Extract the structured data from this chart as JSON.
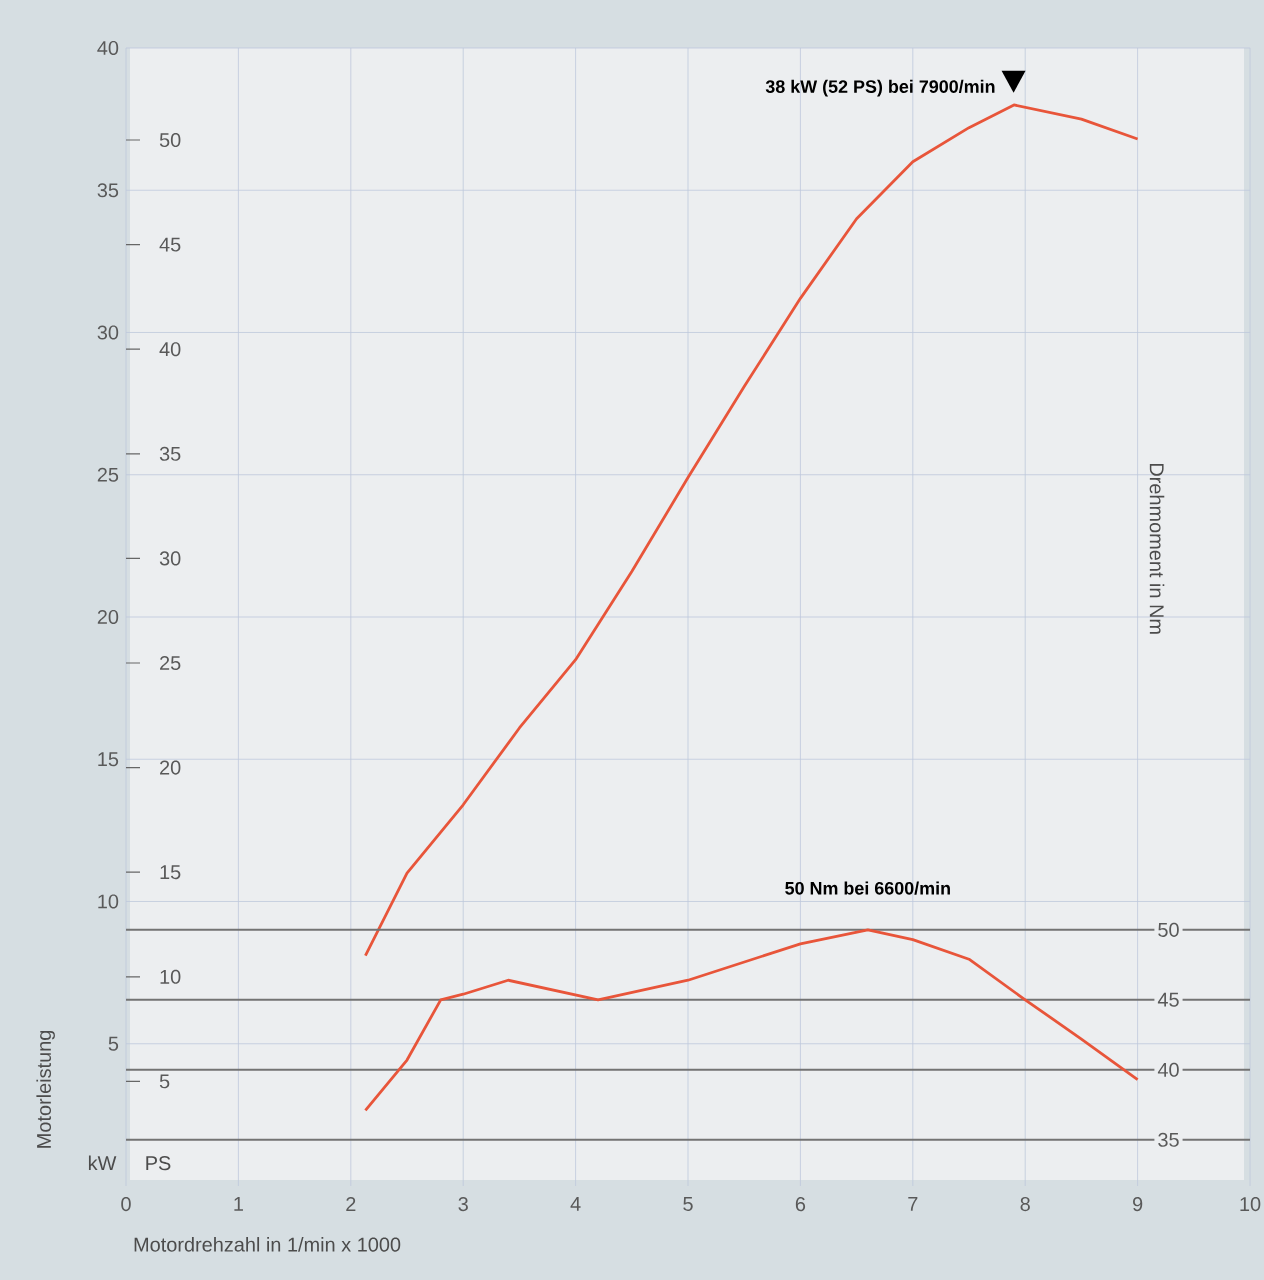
{
  "chart_data": {
    "type": "line",
    "xlabel": "Motordrehzahl in 1/min x 1000",
    "ylabel": "Motorleistung",
    "y3label": "Drehmoment in Nm",
    "xlim": [
      0,
      10
    ],
    "xticks": [
      0,
      1,
      2,
      3,
      4,
      5,
      6,
      7,
      8,
      9,
      10
    ],
    "ylim": [
      0,
      40
    ],
    "yticks": [
      5,
      10,
      15,
      20,
      25,
      30,
      35,
      40
    ],
    "y2lim": [
      0,
      54.4
    ],
    "y2ticks": [
      5,
      10,
      15,
      20,
      25,
      30,
      35,
      40,
      45,
      50
    ],
    "y3lim": [
      31.7,
      113
    ],
    "y3ticks": [
      35,
      40,
      45,
      50
    ],
    "grid": true,
    "marker": "none",
    "line_style": "solid",
    "series": [
      {
        "color": "#e8553a",
        "x": [
          2.13,
          2.5,
          3,
          3.5,
          4,
          4.5,
          5,
          5.5,
          6,
          6.5,
          7,
          7.5,
          7.9,
          8.5,
          9
        ],
        "values": [
          8.1,
          11,
          13.4,
          16.1,
          18.5,
          21.6,
          24.9,
          28.1,
          31.2,
          34,
          36,
          37.2,
          38,
          37.5,
          36.8
        ]
      },
      {
        "color": "#e8553a",
        "axis": "y3",
        "x": [
          2.13,
          2.5,
          2.8,
          3,
          3.4,
          3.8,
          4.2,
          5,
          6,
          6.6,
          7,
          7.5,
          8,
          8.5,
          9
        ],
        "values": [
          37.1,
          40.7,
          45,
          45.4,
          46.4,
          45.7,
          45,
          46.4,
          49,
          50,
          49.3,
          47.9,
          45,
          42.2,
          39.3
        ]
      }
    ],
    "annotations": [
      {
        "text": "38 kW (52 PS) bei 7900/min",
        "x": 7.9,
        "y": 38
      },
      "50 Nm bei 6600/min",
      "kW",
      "PS"
    ]
  }
}
